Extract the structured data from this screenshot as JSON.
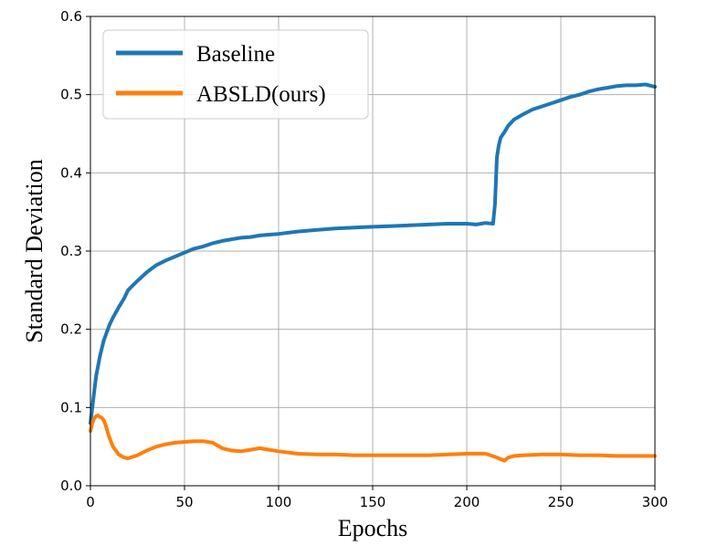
{
  "chart_data": {
    "type": "line",
    "title": "",
    "xlabel": "Epochs",
    "ylabel": "Standard Deviation",
    "xlim": [
      0,
      300
    ],
    "ylim": [
      0.0,
      0.6
    ],
    "xticks": [
      0,
      50,
      100,
      150,
      200,
      250,
      300
    ],
    "yticks": [
      0.0,
      0.1,
      0.2,
      0.3,
      0.4,
      0.5,
      0.6
    ],
    "xtick_labels": [
      "0",
      "50",
      "100",
      "150",
      "200",
      "250",
      "300"
    ],
    "ytick_labels": [
      "0.0",
      "0.1",
      "0.2",
      "0.3",
      "0.4",
      "0.5",
      "0.6"
    ],
    "grid": true,
    "legend": "top-left",
    "series": [
      {
        "name": "Baseline",
        "color": "#1f77b4",
        "x": [
          0,
          1,
          2,
          3,
          5,
          7,
          10,
          12,
          15,
          18,
          20,
          25,
          30,
          35,
          40,
          45,
          50,
          55,
          60,
          65,
          70,
          75,
          80,
          85,
          90,
          95,
          100,
          110,
          120,
          130,
          140,
          150,
          160,
          170,
          180,
          190,
          200,
          205,
          210,
          214,
          215,
          216,
          217,
          218,
          220,
          222,
          225,
          230,
          235,
          240,
          245,
          250,
          255,
          260,
          265,
          270,
          275,
          280,
          285,
          290,
          295,
          300
        ],
        "y": [
          0.08,
          0.1,
          0.12,
          0.14,
          0.165,
          0.185,
          0.205,
          0.215,
          0.228,
          0.24,
          0.25,
          0.262,
          0.273,
          0.282,
          0.288,
          0.293,
          0.298,
          0.303,
          0.306,
          0.31,
          0.313,
          0.315,
          0.317,
          0.318,
          0.32,
          0.321,
          0.322,
          0.325,
          0.327,
          0.329,
          0.33,
          0.331,
          0.332,
          0.333,
          0.334,
          0.335,
          0.335,
          0.334,
          0.336,
          0.335,
          0.36,
          0.42,
          0.435,
          0.445,
          0.452,
          0.46,
          0.468,
          0.475,
          0.481,
          0.485,
          0.489,
          0.493,
          0.497,
          0.5,
          0.504,
          0.507,
          0.509,
          0.511,
          0.512,
          0.512,
          0.513,
          0.51
        ]
      },
      {
        "name": "ABSLD(ours)",
        "color": "#ff7f0e",
        "x": [
          0,
          1,
          2,
          3,
          4,
          5,
          6,
          7,
          8,
          10,
          12,
          15,
          18,
          20,
          25,
          30,
          35,
          40,
          45,
          50,
          55,
          60,
          65,
          70,
          75,
          80,
          85,
          90,
          95,
          100,
          110,
          120,
          130,
          140,
          150,
          160,
          170,
          180,
          190,
          200,
          210,
          215,
          218,
          220,
          222,
          225,
          230,
          240,
          250,
          260,
          270,
          280,
          290,
          300
        ],
        "y": [
          0.07,
          0.08,
          0.086,
          0.089,
          0.09,
          0.088,
          0.087,
          0.084,
          0.078,
          0.062,
          0.05,
          0.04,
          0.036,
          0.035,
          0.039,
          0.045,
          0.05,
          0.053,
          0.055,
          0.056,
          0.057,
          0.057,
          0.055,
          0.048,
          0.045,
          0.044,
          0.046,
          0.048,
          0.046,
          0.044,
          0.041,
          0.04,
          0.04,
          0.039,
          0.039,
          0.039,
          0.039,
          0.039,
          0.04,
          0.041,
          0.041,
          0.037,
          0.034,
          0.032,
          0.036,
          0.038,
          0.039,
          0.04,
          0.04,
          0.039,
          0.039,
          0.038,
          0.038,
          0.038
        ]
      }
    ]
  }
}
